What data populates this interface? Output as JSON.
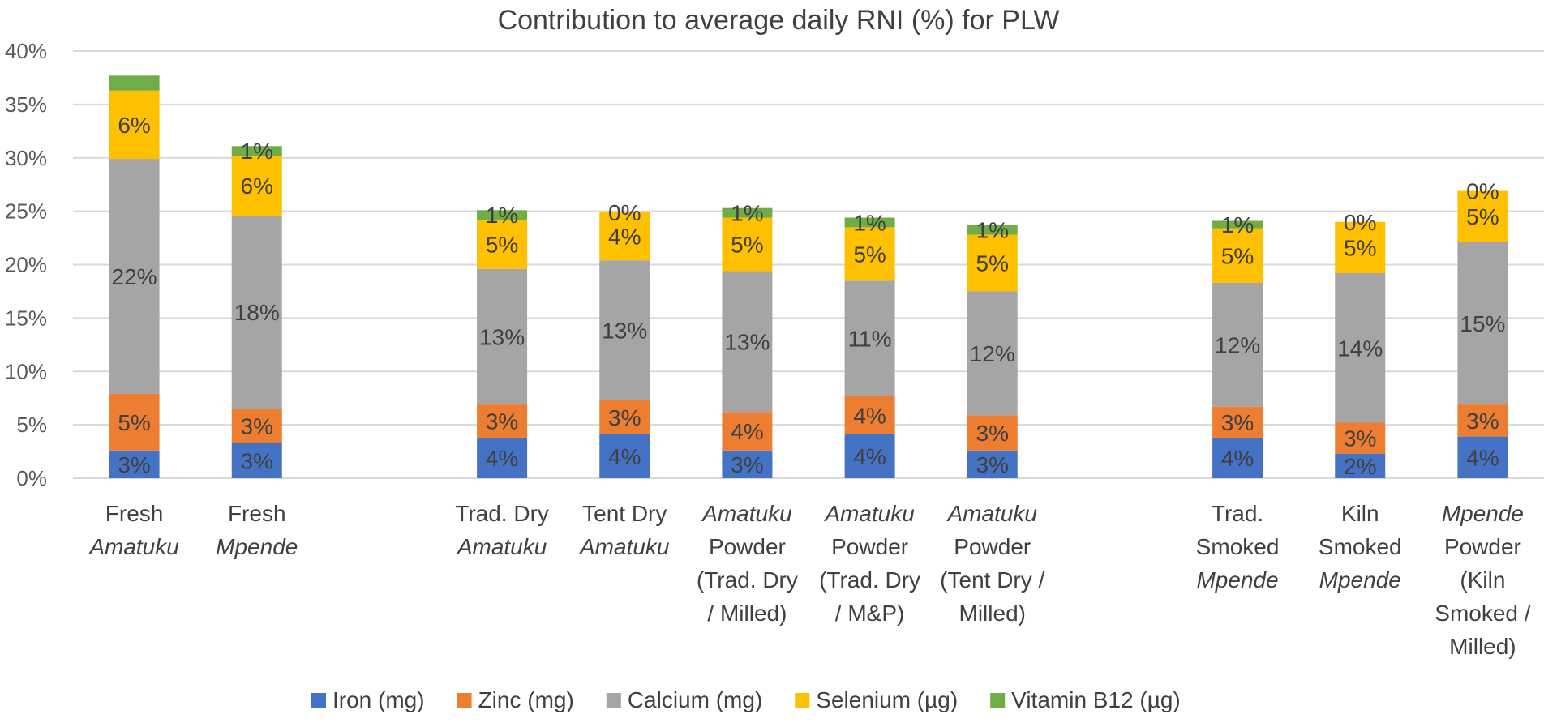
{
  "chart_data": {
    "type": "bar",
    "stacked": true,
    "title": "Contribution to average daily RNI (%) for PLW",
    "ylim": [
      0,
      40
    ],
    "y_ticks": [
      "0%",
      "5%",
      "10%",
      "15%",
      "20%",
      "25%",
      "30%",
      "35%",
      "40%"
    ],
    "grid": true,
    "legend_position": "bottom",
    "categories": [
      {
        "lines": [
          {
            "t": [
              {
                "s": "Fresh",
                "i": false
              }
            ]
          },
          {
            "t": [
              {
                "s": "Amatuku",
                "i": true
              }
            ]
          }
        ]
      },
      {
        "lines": [
          {
            "t": [
              {
                "s": "Fresh",
                "i": false
              }
            ]
          },
          {
            "t": [
              {
                "s": "Mpende",
                "i": true
              }
            ]
          }
        ]
      },
      {
        "gap": true
      },
      {
        "lines": [
          {
            "t": [
              {
                "s": "Trad. Dry",
                "i": false
              }
            ]
          },
          {
            "t": [
              {
                "s": "Amatuku",
                "i": true
              }
            ]
          }
        ]
      },
      {
        "lines": [
          {
            "t": [
              {
                "s": "Tent Dry",
                "i": false
              }
            ]
          },
          {
            "t": [
              {
                "s": "Amatuku",
                "i": true
              }
            ]
          }
        ]
      },
      {
        "lines": [
          {
            "t": [
              {
                "s": "Amatuku",
                "i": true
              }
            ]
          },
          {
            "t": [
              {
                "s": "Powder",
                "i": false
              }
            ]
          },
          {
            "t": [
              {
                "s": "(Trad. Dry",
                "i": false
              }
            ]
          },
          {
            "t": [
              {
                "s": "/ Milled)",
                "i": false
              }
            ]
          }
        ]
      },
      {
        "lines": [
          {
            "t": [
              {
                "s": "Amatuku",
                "i": true
              }
            ]
          },
          {
            "t": [
              {
                "s": "Powder",
                "i": false
              }
            ]
          },
          {
            "t": [
              {
                "s": "(Trad. Dry",
                "i": false
              }
            ]
          },
          {
            "t": [
              {
                "s": "/ M&P)",
                "i": false
              }
            ]
          }
        ]
      },
      {
        "lines": [
          {
            "t": [
              {
                "s": "Amatuku",
                "i": true
              }
            ]
          },
          {
            "t": [
              {
                "s": "Powder",
                "i": false
              }
            ]
          },
          {
            "t": [
              {
                "s": "(Tent Dry /",
                "i": false
              }
            ]
          },
          {
            "t": [
              {
                "s": "Milled)",
                "i": false
              }
            ]
          }
        ]
      },
      {
        "gap": true
      },
      {
        "lines": [
          {
            "t": [
              {
                "s": "Trad.",
                "i": false
              }
            ]
          },
          {
            "t": [
              {
                "s": "Smoked",
                "i": false
              }
            ]
          },
          {
            "t": [
              {
                "s": "Mpende",
                "i": true
              }
            ]
          }
        ]
      },
      {
        "lines": [
          {
            "t": [
              {
                "s": "Kiln",
                "i": false
              }
            ]
          },
          {
            "t": [
              {
                "s": "Smoked",
                "i": false
              }
            ]
          },
          {
            "t": [
              {
                "s": "Mpende",
                "i": true
              }
            ]
          }
        ]
      },
      {
        "lines": [
          {
            "t": [
              {
                "s": "Mpende",
                "i": true
              }
            ]
          },
          {
            "t": [
              {
                "s": "Powder",
                "i": false
              }
            ]
          },
          {
            "t": [
              {
                "s": "(Kiln",
                "i": false
              }
            ]
          },
          {
            "t": [
              {
                "s": "Smoked /",
                "i": false
              }
            ]
          },
          {
            "t": [
              {
                "s": "Milled)",
                "i": false
              }
            ]
          }
        ]
      }
    ],
    "series": [
      {
        "name": "Iron (mg)",
        "color": "#4472C4",
        "values": [
          2.6,
          3.3,
          null,
          3.8,
          4.1,
          2.6,
          4.1,
          2.6,
          null,
          3.8,
          2.3,
          3.9
        ],
        "labels": [
          "3%",
          "3%",
          "",
          "4%",
          "4%",
          "3%",
          "4%",
          "3%",
          "",
          "4%",
          "2%",
          "4%"
        ]
      },
      {
        "name": "Zinc (mg)",
        "color": "#ED7D31",
        "values": [
          5.3,
          3.2,
          null,
          3.1,
          3.2,
          3.6,
          3.6,
          3.3,
          null,
          2.9,
          2.9,
          3.0
        ],
        "labels": [
          "5%",
          "3%",
          "",
          "3%",
          "3%",
          "4%",
          "4%",
          "3%",
          "",
          "3%",
          "3%",
          "3%"
        ]
      },
      {
        "name": "Calcium (mg)",
        "color": "#A5A5A5",
        "values": [
          22.0,
          18.1,
          null,
          12.7,
          13.1,
          13.2,
          10.8,
          11.6,
          null,
          11.6,
          14.0,
          15.2
        ],
        "labels": [
          "22%",
          "18%",
          "",
          "13%",
          "13%",
          "13%",
          "11%",
          "12%",
          "",
          "12%",
          "14%",
          "15%"
        ]
      },
      {
        "name": "Selenium (µg)",
        "color": "#FFC000",
        "values": [
          6.4,
          5.6,
          null,
          4.6,
          4.5,
          5.0,
          5.0,
          5.3,
          null,
          5.1,
          4.8,
          4.8
        ],
        "labels": [
          "6%",
          "6%",
          "",
          "5%",
          "4%",
          "5%",
          "5%",
          "5%",
          "",
          "5%",
          "5%",
          "5%"
        ]
      },
      {
        "name": "Vitamin B12 (µg)",
        "color": "#70AD47",
        "values": [
          1.4,
          0.9,
          null,
          0.9,
          0.0,
          0.9,
          0.9,
          0.9,
          null,
          0.7,
          0.0,
          0.0
        ],
        "labels": [
          "",
          "1%",
          "",
          "1%",
          "0%",
          "1%",
          "1%",
          "1%",
          "",
          "1%",
          "0%",
          "0%"
        ]
      }
    ]
  }
}
